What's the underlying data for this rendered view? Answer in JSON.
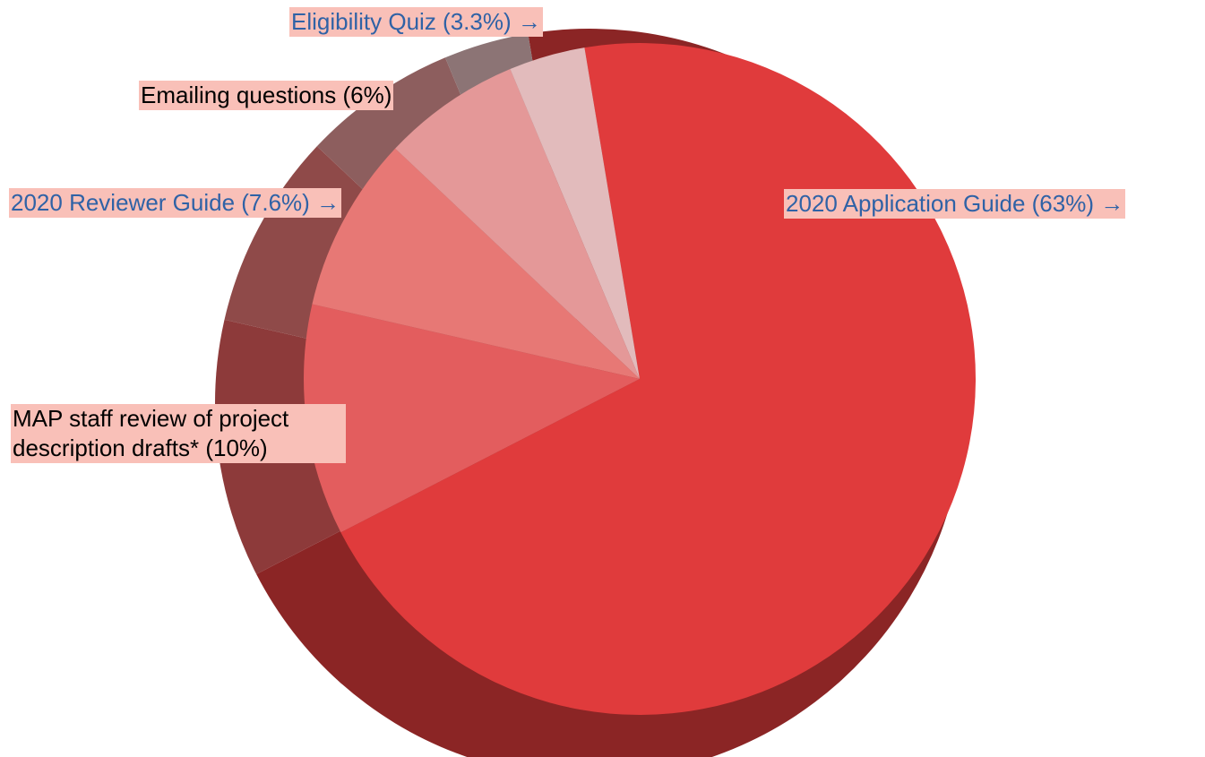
{
  "chart_data": {
    "type": "pie",
    "style": "3d",
    "slices": [
      {
        "label": "2020 Application Guide (63%) →",
        "value": 63,
        "color": "#e03b3c",
        "link": true
      },
      {
        "label": "MAP staff review of project description drafts* (10%)",
        "value": 10,
        "color": "#e35d5e",
        "link": false
      },
      {
        "label": "2020 Reviewer Guide (7.6%) →",
        "value": 7.6,
        "color": "#e77875",
        "link": true
      },
      {
        "label": "Emailing questions (6%)",
        "value": 6,
        "color": "#e49898",
        "link": false
      },
      {
        "label": "Eligibility Quiz (3.3%) →",
        "value": 3.3,
        "color": "#e2bbbc",
        "link": true
      }
    ],
    "label_background": "#f9c0b8"
  }
}
